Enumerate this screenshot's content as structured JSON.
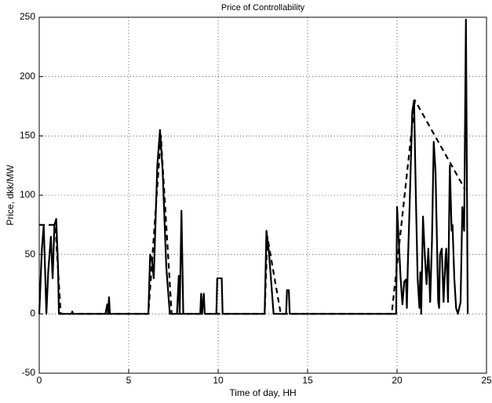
{
  "chart_data": {
    "type": "line",
    "title": "Price of Controllability",
    "xlabel": "Time of day, HH",
    "ylabel": "Price, dkk/MW",
    "xlim": [
      0,
      25
    ],
    "xticks": [
      0,
      5,
      10,
      15,
      20,
      25
    ],
    "ylim": [
      -50,
      250
    ],
    "yticks": [
      -50,
      0,
      50,
      100,
      150,
      200,
      250
    ],
    "grid": true,
    "series": [
      {
        "color": "#000000",
        "style": "solid",
        "x": [
          0,
          0.15,
          0.25,
          0.4,
          0.5,
          0.65,
          0.75,
          0.85,
          0.95,
          1.05,
          1.1,
          1.8,
          1.85,
          1.9,
          3.7,
          3.8,
          3.85,
          3.9,
          3.95,
          6.1,
          6.2,
          6.3,
          6.4,
          6.6,
          6.75,
          6.9,
          7.1,
          7.3,
          7.7,
          7.8,
          7.85,
          7.95,
          8.05,
          9.0,
          9.05,
          9.1,
          9.2,
          9.25,
          9.9,
          9.95,
          10.2,
          10.25,
          12.6,
          12.7,
          12.85,
          13.0,
          13.1,
          13.8,
          13.85,
          13.95,
          14.0,
          19.95,
          20.0,
          20.1,
          20.2,
          20.3,
          20.4,
          20.5,
          20.55,
          20.6,
          20.7,
          20.85,
          20.95,
          21.05,
          21.15,
          21.25,
          21.3,
          21.35,
          21.45,
          21.55,
          21.65,
          21.75,
          21.85,
          21.95,
          22.05,
          22.15,
          22.3,
          22.35,
          22.4,
          22.5,
          22.6,
          22.7,
          22.75,
          22.85,
          22.95,
          23.05,
          23.1,
          23.2,
          23.3,
          23.4,
          23.55,
          23.65,
          23.75,
          23.85,
          23.95
        ],
        "values": [
          0,
          55,
          75,
          0,
          35,
          65,
          30,
          75,
          80,
          40,
          0,
          0,
          2,
          0,
          0,
          8,
          0,
          14,
          0,
          0,
          50,
          45,
          30,
          125,
          155,
          120,
          40,
          0,
          0,
          32,
          0,
          87,
          0,
          0,
          17,
          0,
          17,
          0,
          0,
          30,
          30,
          0,
          0,
          70,
          50,
          20,
          0,
          0,
          20,
          20,
          0,
          0,
          90,
          60,
          30,
          8,
          27,
          29,
          5,
          40,
          90,
          170,
          180,
          100,
          30,
          5,
          35,
          0,
          82,
          50,
          25,
          55,
          10,
          60,
          145,
          120,
          10,
          5,
          50,
          55,
          10,
          45,
          55,
          10,
          125,
          70,
          75,
          30,
          5,
          0,
          10,
          90,
          70,
          248,
          0
        ]
      },
      {
        "color": "#000000",
        "style": "dashed",
        "x": [
          0,
          0.9,
          1.2,
          6.1,
          6.8,
          7.4,
          12.6,
          12.75,
          13.5,
          19.7,
          21.0,
          23.8
        ],
        "values": [
          75,
          75,
          0,
          0,
          150,
          0,
          0,
          65,
          0,
          0,
          180,
          105
        ]
      }
    ]
  }
}
